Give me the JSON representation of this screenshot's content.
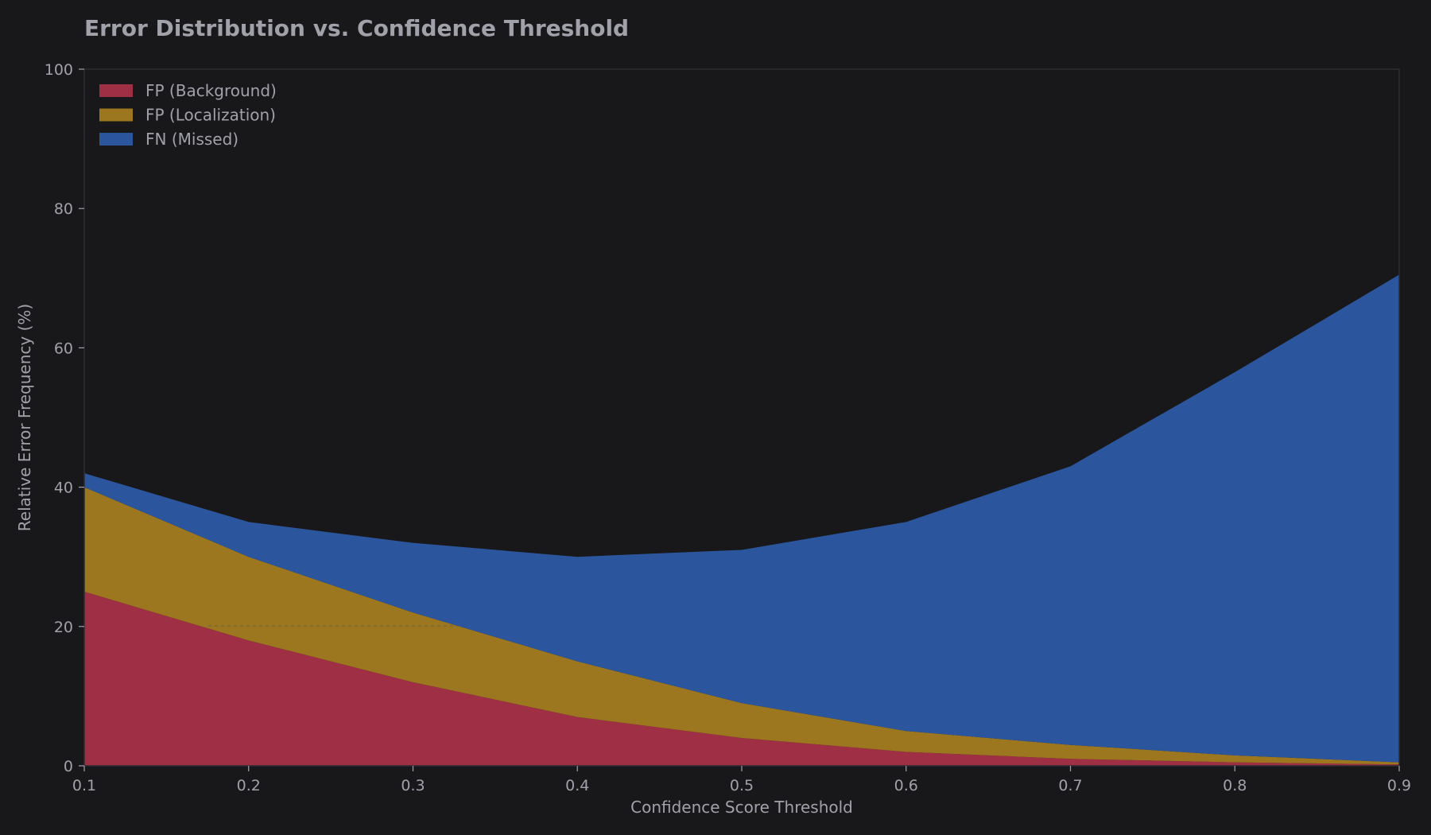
{
  "chart_data": {
    "type": "area",
    "stacked": true,
    "title": "Error Distribution vs. Confidence Threshold",
    "xlabel": "Confidence Score Threshold",
    "ylabel": "Relative Error Frequency (%)",
    "x": [
      0.1,
      0.2,
      0.3,
      0.4,
      0.5,
      0.6,
      0.7,
      0.8,
      0.9
    ],
    "x_tick_labels": [
      "0.1",
      "0.2",
      "0.3",
      "0.4",
      "0.5",
      "0.6",
      "0.7",
      "0.8",
      "0.9"
    ],
    "xlim": [
      0.1,
      0.9
    ],
    "ylim": [
      0,
      100
    ],
    "y_ticks": [
      0,
      20,
      40,
      60,
      80,
      100
    ],
    "y_tick_labels": [
      "0",
      "20",
      "40",
      "60",
      "80",
      "100"
    ],
    "legend_position": "top-left",
    "grid": false,
    "series": [
      {
        "name": "FP (Background)",
        "color": "#9f2f44",
        "values": [
          25,
          18,
          12,
          7,
          4,
          2,
          1,
          0.5,
          0.2
        ]
      },
      {
        "name": "FP (Localization)",
        "color": "#9c771f",
        "values": [
          15,
          12,
          10,
          8,
          5,
          3,
          2,
          1,
          0.3
        ]
      },
      {
        "name": "FN (Missed)",
        "color": "#2b569e",
        "values": [
          2,
          5,
          10,
          15,
          22,
          30,
          40,
          55,
          70
        ]
      }
    ]
  }
}
